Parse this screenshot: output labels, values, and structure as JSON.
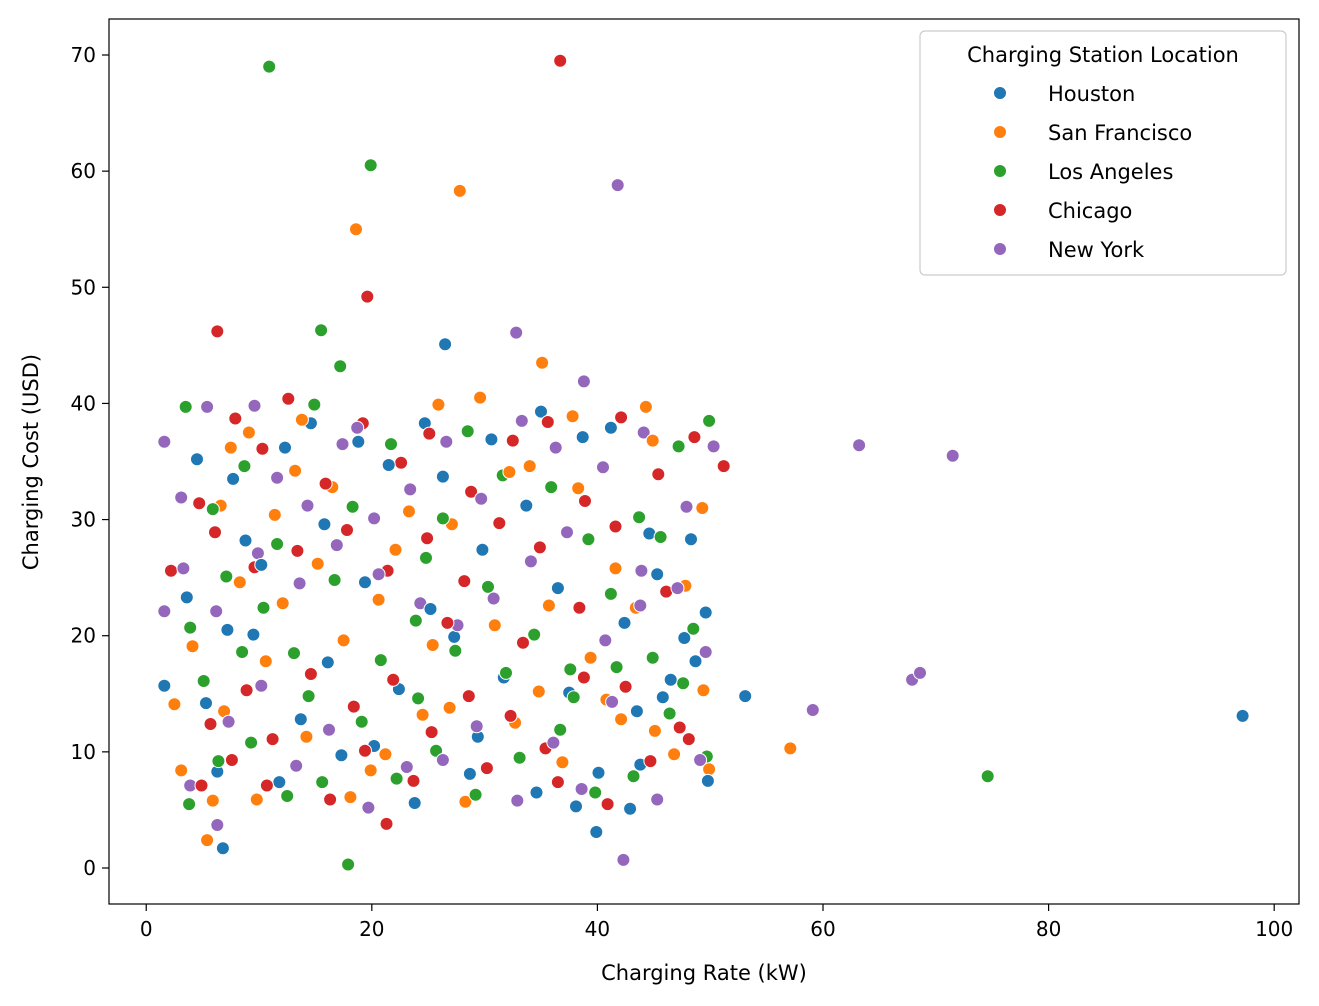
{
  "chart_data": {
    "type": "scatter",
    "title": "",
    "xlabel": "Charging Rate (kW)",
    "ylabel": "Charging Cost (USD)",
    "xlim": [
      -3.3,
      102.2
    ],
    "ylim": [
      -3.1,
      73.1
    ],
    "x_ticks": [
      "0",
      "20",
      "40",
      "60",
      "80",
      "100"
    ],
    "y_ticks": [
      "0",
      "10",
      "20",
      "30",
      "40",
      "50",
      "60",
      "70"
    ],
    "grid": false,
    "legend": {
      "title": "Charging Station Location",
      "position": "top-right"
    },
    "series": [
      {
        "name": "Houston",
        "color": "#1f77b4",
        "points": [
          [
            1.6,
            15.7
          ],
          [
            26.5,
            45.1
          ],
          [
            53.1,
            14.8
          ],
          [
            97.2,
            13.1
          ],
          [
            6.8,
            1.7
          ],
          [
            39.9,
            3.1
          ],
          [
            42.9,
            5.1
          ],
          [
            4.5,
            35.2
          ],
          [
            7.7,
            33.5
          ],
          [
            12.3,
            36.2
          ],
          [
            18.8,
            36.7
          ],
          [
            24.7,
            38.3
          ],
          [
            29.8,
            27.4
          ],
          [
            35,
            39.3
          ],
          [
            41.2,
            37.9
          ],
          [
            45.3,
            25.3
          ],
          [
            49.6,
            22
          ],
          [
            3.6,
            23.3
          ],
          [
            8.8,
            28.2
          ],
          [
            14.6,
            38.3
          ],
          [
            21.5,
            34.7
          ],
          [
            26.3,
            33.7
          ],
          [
            33.7,
            31.2
          ],
          [
            38.7,
            37.1
          ],
          [
            44.6,
            28.8
          ],
          [
            48.3,
            28.3
          ],
          [
            5.3,
            14.2
          ],
          [
            9.5,
            20.1
          ],
          [
            16.1,
            17.7
          ],
          [
            22.4,
            15.4
          ],
          [
            27.3,
            19.9
          ],
          [
            31.7,
            16.4
          ],
          [
            37.5,
            15.1
          ],
          [
            43.5,
            13.5
          ],
          [
            47.7,
            19.8
          ],
          [
            6.3,
            8.3
          ],
          [
            11.8,
            7.4
          ],
          [
            17.3,
            9.7
          ],
          [
            23.8,
            5.6
          ],
          [
            28.7,
            8.1
          ],
          [
            34.6,
            6.5
          ],
          [
            40.1,
            8.2
          ],
          [
            45.8,
            14.7
          ],
          [
            49.8,
            7.5
          ],
          [
            13.7,
            12.8
          ],
          [
            20.2,
            10.5
          ],
          [
            29.4,
            11.3
          ],
          [
            38.1,
            5.3
          ],
          [
            43.8,
            8.9
          ],
          [
            10.2,
            26.1
          ],
          [
            19.4,
            24.6
          ],
          [
            25.2,
            22.3
          ],
          [
            36.5,
            24.1
          ],
          [
            42.4,
            21.1
          ],
          [
            48.7,
            17.8
          ],
          [
            7.2,
            20.5
          ],
          [
            15.8,
            29.6
          ],
          [
            30.6,
            36.9
          ],
          [
            46.5,
            16.2
          ]
        ]
      },
      {
        "name": "San Francisco",
        "color": "#ff7f0e",
        "points": [
          [
            18.6,
            55
          ],
          [
            27.8,
            58.3
          ],
          [
            35.1,
            43.5
          ],
          [
            57.1,
            10.3
          ],
          [
            5.4,
            2.4
          ],
          [
            4.1,
            19.1
          ],
          [
            6.6,
            31.2
          ],
          [
            9.1,
            37.5
          ],
          [
            13.2,
            34.2
          ],
          [
            16.5,
            32.8
          ],
          [
            22.1,
            27.4
          ],
          [
            25.9,
            39.9
          ],
          [
            29.6,
            40.5
          ],
          [
            34,
            34.6
          ],
          [
            37.8,
            38.9
          ],
          [
            41.6,
            25.8
          ],
          [
            44.3,
            39.7
          ],
          [
            49.3,
            31
          ],
          [
            3.1,
            8.4
          ],
          [
            6.9,
            13.5
          ],
          [
            10.6,
            17.8
          ],
          [
            14.2,
            11.3
          ],
          [
            18.1,
            6.1
          ],
          [
            21.2,
            9.8
          ],
          [
            24.5,
            13.2
          ],
          [
            28.3,
            5.7
          ],
          [
            32.7,
            12.5
          ],
          [
            36.9,
            9.1
          ],
          [
            40.8,
            14.5
          ],
          [
            45.1,
            11.8
          ],
          [
            49.9,
            8.5
          ],
          [
            8.3,
            24.6
          ],
          [
            12.1,
            22.8
          ],
          [
            17.5,
            19.6
          ],
          [
            20.6,
            23.1
          ],
          [
            25.4,
            19.2
          ],
          [
            30.9,
            20.9
          ],
          [
            35.7,
            22.6
          ],
          [
            39.4,
            18.1
          ],
          [
            43.4,
            22.4
          ],
          [
            47.8,
            24.3
          ],
          [
            11.4,
            30.4
          ],
          [
            15.2,
            26.2
          ],
          [
            23.3,
            30.7
          ],
          [
            27.1,
            29.6
          ],
          [
            32.2,
            34.1
          ],
          [
            38.3,
            32.7
          ],
          [
            44.9,
            36.8
          ],
          [
            2.5,
            14.1
          ],
          [
            5.9,
            5.8
          ],
          [
            9.8,
            5.9
          ],
          [
            19.9,
            8.4
          ],
          [
            26.9,
            13.8
          ],
          [
            34.8,
            15.2
          ],
          [
            42.1,
            12.8
          ],
          [
            46.8,
            9.8
          ],
          [
            49.4,
            15.3
          ],
          [
            7.5,
            36.2
          ],
          [
            13.8,
            38.6
          ]
        ]
      },
      {
        "name": "Los Angeles",
        "color": "#2ca02c",
        "points": [
          [
            10.9,
            69
          ],
          [
            19.9,
            60.5
          ],
          [
            15.5,
            46.3
          ],
          [
            17.2,
            43.2
          ],
          [
            17.9,
            0.3
          ],
          [
            74.6,
            7.9
          ],
          [
            3.5,
            39.7
          ],
          [
            5.9,
            30.9
          ],
          [
            8.7,
            34.6
          ],
          [
            11.6,
            27.9
          ],
          [
            14.9,
            39.9
          ],
          [
            18.3,
            31.1
          ],
          [
            21.7,
            36.5
          ],
          [
            24.8,
            26.7
          ],
          [
            28.5,
            37.6
          ],
          [
            31.6,
            33.8
          ],
          [
            35.9,
            32.8
          ],
          [
            39.2,
            28.3
          ],
          [
            43.7,
            30.2
          ],
          [
            47.2,
            36.3
          ],
          [
            49.9,
            38.5
          ],
          [
            3.9,
            20.7
          ],
          [
            7.1,
            25.1
          ],
          [
            10.4,
            22.4
          ],
          [
            13.1,
            18.5
          ],
          [
            16.7,
            24.8
          ],
          [
            20.8,
            17.9
          ],
          [
            23.9,
            21.3
          ],
          [
            27.4,
            18.7
          ],
          [
            30.3,
            24.2
          ],
          [
            34.4,
            20.1
          ],
          [
            37.6,
            17.1
          ],
          [
            41.2,
            23.6
          ],
          [
            44.9,
            18.1
          ],
          [
            48.5,
            20.6
          ],
          [
            3.8,
            5.5
          ],
          [
            6.4,
            9.2
          ],
          [
            9.3,
            10.8
          ],
          [
            12.5,
            6.2
          ],
          [
            15.6,
            7.4
          ],
          [
            19.1,
            12.6
          ],
          [
            22.2,
            7.7
          ],
          [
            25.7,
            10.1
          ],
          [
            29.2,
            6.3
          ],
          [
            33.1,
            9.5
          ],
          [
            36.7,
            11.9
          ],
          [
            39.8,
            6.5
          ],
          [
            43.2,
            7.9
          ],
          [
            46.4,
            13.3
          ],
          [
            49.7,
            9.6
          ],
          [
            5.1,
            16.1
          ],
          [
            8.5,
            18.6
          ],
          [
            14.4,
            14.8
          ],
          [
            24.1,
            14.6
          ],
          [
            31.9,
            16.8
          ],
          [
            37.9,
            14.7
          ],
          [
            41.7,
            17.3
          ],
          [
            47.6,
            15.9
          ],
          [
            26.3,
            30.1
          ],
          [
            45.6,
            28.5
          ]
        ]
      },
      {
        "name": "Chicago",
        "color": "#d62728",
        "points": [
          [
            36.7,
            69.5
          ],
          [
            19.6,
            49.2
          ],
          [
            6.3,
            46.2
          ],
          [
            51.2,
            34.6
          ],
          [
            21.3,
            3.8
          ],
          [
            2.2,
            25.6
          ],
          [
            4.7,
            31.4
          ],
          [
            7.9,
            38.7
          ],
          [
            10.3,
            36.1
          ],
          [
            12.6,
            40.4
          ],
          [
            15.9,
            33.1
          ],
          [
            19.2,
            38.3
          ],
          [
            22.6,
            34.9
          ],
          [
            25.1,
            37.4
          ],
          [
            28.8,
            32.4
          ],
          [
            32.5,
            36.8
          ],
          [
            35.6,
            38.4
          ],
          [
            38.9,
            31.6
          ],
          [
            42.1,
            38.8
          ],
          [
            45.4,
            33.9
          ],
          [
            48.6,
            37.1
          ],
          [
            6.1,
            28.9
          ],
          [
            9.6,
            25.9
          ],
          [
            13.4,
            27.3
          ],
          [
            17.8,
            29.1
          ],
          [
            21.4,
            25.6
          ],
          [
            24.9,
            28.4
          ],
          [
            28.2,
            24.7
          ],
          [
            31.3,
            29.7
          ],
          [
            34.9,
            27.6
          ],
          [
            38.4,
            22.4
          ],
          [
            41.6,
            29.4
          ],
          [
            46.1,
            23.8
          ],
          [
            5.7,
            12.4
          ],
          [
            8.9,
            15.3
          ],
          [
            11.2,
            11.1
          ],
          [
            14.6,
            16.7
          ],
          [
            18.4,
            13.9
          ],
          [
            21.9,
            16.2
          ],
          [
            25.3,
            11.7
          ],
          [
            28.6,
            14.8
          ],
          [
            32.3,
            13.1
          ],
          [
            35.4,
            10.3
          ],
          [
            38.8,
            16.4
          ],
          [
            42.5,
            15.6
          ],
          [
            47.3,
            12.1
          ],
          [
            4.9,
            7.1
          ],
          [
            7.6,
            9.3
          ],
          [
            10.7,
            7.1
          ],
          [
            16.3,
            5.9
          ],
          [
            19.4,
            10.1
          ],
          [
            23.7,
            7.5
          ],
          [
            30.2,
            8.6
          ],
          [
            36.5,
            7.4
          ],
          [
            40.9,
            5.5
          ],
          [
            44.7,
            9.2
          ],
          [
            48.1,
            11.1
          ],
          [
            26.7,
            21.1
          ],
          [
            33.4,
            19.4
          ]
        ]
      },
      {
        "name": "New York",
        "color": "#9467bd",
        "points": [
          [
            41.8,
            58.8
          ],
          [
            32.8,
            46.1
          ],
          [
            38.8,
            41.9
          ],
          [
            1.6,
            36.7
          ],
          [
            63.2,
            36.4
          ],
          [
            71.5,
            35.5
          ],
          [
            1.6,
            22.1
          ],
          [
            6.3,
            3.7
          ],
          [
            42.3,
            0.7
          ],
          [
            59.1,
            13.6
          ],
          [
            67.9,
            16.2
          ],
          [
            68.6,
            16.8
          ],
          [
            3.1,
            31.9
          ],
          [
            5.4,
            39.7
          ],
          [
            9.6,
            39.8
          ],
          [
            11.6,
            33.6
          ],
          [
            14.3,
            31.2
          ],
          [
            17.4,
            36.5
          ],
          [
            20.2,
            30.1
          ],
          [
            23.4,
            32.6
          ],
          [
            26.6,
            36.7
          ],
          [
            29.7,
            31.8
          ],
          [
            33.3,
            38.5
          ],
          [
            36.3,
            36.2
          ],
          [
            40.5,
            34.5
          ],
          [
            44.1,
            37.5
          ],
          [
            47.9,
            31.1
          ],
          [
            50.3,
            36.3
          ],
          [
            3.3,
            25.8
          ],
          [
            6.2,
            22.1
          ],
          [
            9.9,
            27.1
          ],
          [
            13.6,
            24.5
          ],
          [
            16.9,
            27.8
          ],
          [
            20.6,
            25.3
          ],
          [
            24.3,
            22.8
          ],
          [
            27.6,
            20.9
          ],
          [
            30.8,
            23.2
          ],
          [
            34.1,
            26.4
          ],
          [
            37.3,
            28.9
          ],
          [
            40.7,
            19.6
          ],
          [
            43.9,
            25.6
          ],
          [
            47.1,
            24.1
          ],
          [
            49.6,
            18.6
          ],
          [
            3.9,
            7.1
          ],
          [
            7.3,
            12.6
          ],
          [
            10.2,
            15.7
          ],
          [
            13.3,
            8.8
          ],
          [
            16.2,
            11.9
          ],
          [
            19.7,
            5.2
          ],
          [
            23.1,
            8.7
          ],
          [
            26.3,
            9.3
          ],
          [
            29.3,
            12.2
          ],
          [
            32.9,
            5.8
          ],
          [
            36.1,
            10.8
          ],
          [
            38.6,
            6.8
          ],
          [
            41.3,
            14.3
          ],
          [
            45.3,
            5.9
          ],
          [
            49.1,
            9.3
          ],
          [
            18.7,
            37.9
          ],
          [
            43.8,
            22.6
          ]
        ]
      }
    ]
  }
}
